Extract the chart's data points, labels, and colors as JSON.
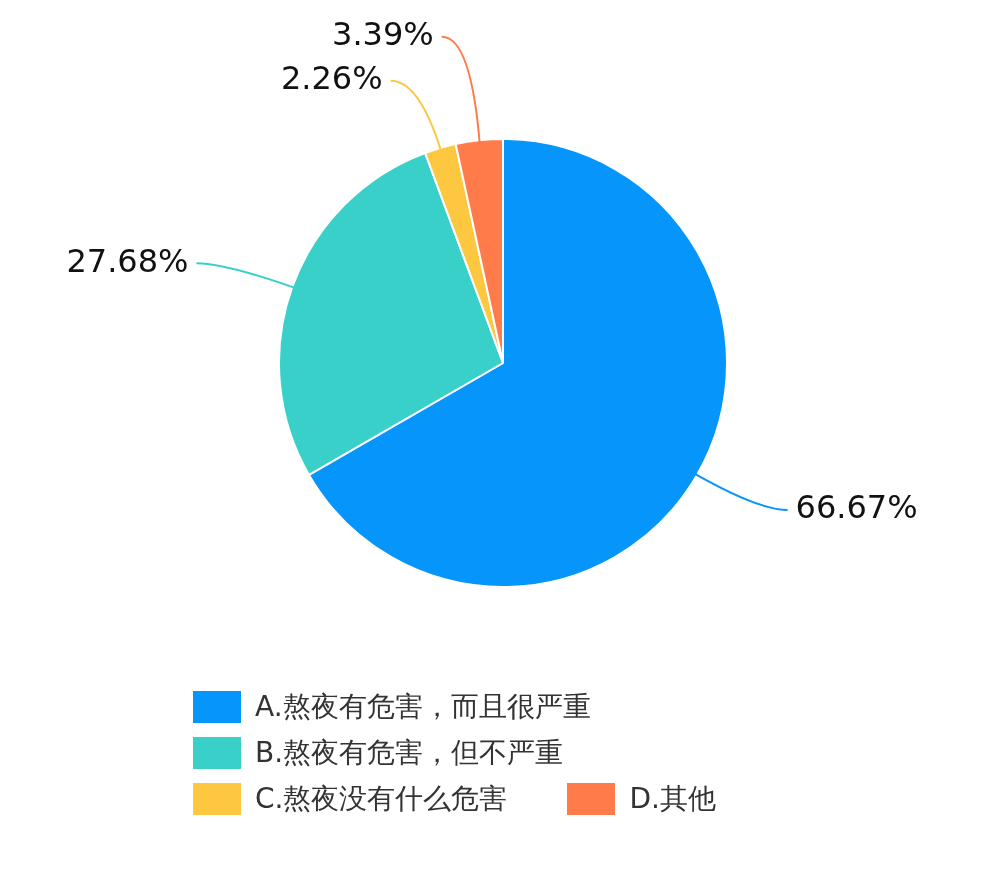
{
  "chart_data": {
    "type": "pie",
    "categories": [
      "A.熬夜有危害，而且很严重",
      "B.熬夜有危害，但不严重",
      "C.熬夜没有什么危害",
      "D.其他"
    ],
    "values": [
      66.67,
      27.68,
      2.26,
      3.39
    ],
    "colors": [
      "#0595fb",
      "#38d0c9",
      "#fdc840",
      "#ff7b4a"
    ],
    "value_labels": [
      "66.67%",
      "27.68%",
      "2.26%",
      "3.39%"
    ],
    "legend": "bottom"
  }
}
